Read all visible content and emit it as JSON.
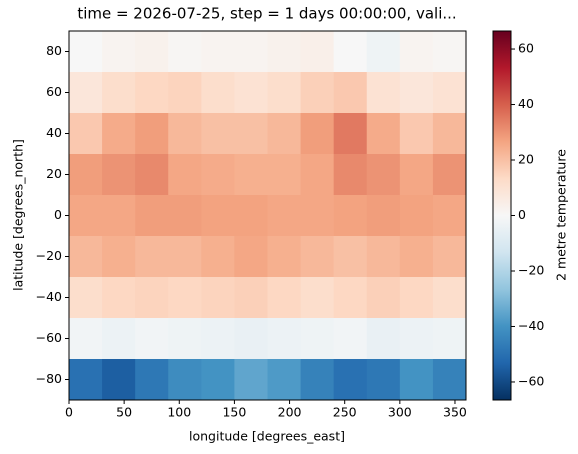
{
  "chart_data": {
    "type": "heatmap",
    "title": "time = 2026-07-25, step = 1 days 00:00:00, vali...",
    "xlabel": "longitude [degrees_east]",
    "ylabel": "latitude [degrees_north]",
    "colorbar_label": "2 metre temperature",
    "x": [
      0,
      30,
      60,
      90,
      120,
      150,
      180,
      210,
      240,
      270,
      300,
      330,
      360
    ],
    "y": [
      90,
      70,
      50,
      30,
      10,
      -10,
      -30,
      -50,
      -70,
      -90
    ],
    "values": [
      [
        0,
        2,
        3,
        1,
        2,
        2,
        3,
        4,
        0,
        -3,
        2,
        1
      ],
      [
        8,
        12,
        14,
        15,
        12,
        10,
        12,
        16,
        18,
        10,
        8,
        10
      ],
      [
        18,
        25,
        28,
        22,
        20,
        20,
        22,
        28,
        35,
        25,
        18,
        22
      ],
      [
        28,
        30,
        32,
        26,
        25,
        24,
        24,
        26,
        32,
        30,
        26,
        30
      ],
      [
        26,
        26,
        28,
        28,
        27,
        27,
        26,
        26,
        27,
        28,
        27,
        26
      ],
      [
        22,
        24,
        22,
        22,
        24,
        26,
        24,
        22,
        20,
        22,
        24,
        22
      ],
      [
        12,
        14,
        15,
        14,
        15,
        16,
        14,
        12,
        14,
        16,
        14,
        12
      ],
      [
        -2,
        -4,
        -2,
        -3,
        -4,
        -5,
        -4,
        -3,
        -2,
        -5,
        -4,
        -3
      ],
      [
        -50,
        -55,
        -48,
        -42,
        -40,
        -35,
        -38,
        -45,
        -50,
        -48,
        -40,
        -45
      ]
    ],
    "xlim": [
      0,
      360
    ],
    "ylim": [
      -90,
      90
    ],
    "xticks": [
      0,
      50,
      100,
      150,
      200,
      250,
      300,
      350
    ],
    "yticks": [
      {
        "value": -80,
        "label": "−80"
      },
      {
        "value": -60,
        "label": "−60"
      },
      {
        "value": -40,
        "label": "−40"
      },
      {
        "value": -20,
        "label": "−20"
      },
      0,
      20,
      40,
      60,
      80
    ],
    "clim": [
      -66.5,
      66.5
    ],
    "cticks": [
      {
        "value": -60,
        "label": "−60"
      },
      {
        "value": -40,
        "label": "−40"
      },
      {
        "value": -20,
        "label": "−20"
      },
      0,
      20,
      40,
      60
    ],
    "colormap": [
      "#053061",
      "#2166ac",
      "#4393c3",
      "#92c5de",
      "#d1e5f0",
      "#f7f7f7",
      "#fddbc7",
      "#f4a582",
      "#d6604d",
      "#b2182b",
      "#67001f"
    ]
  }
}
